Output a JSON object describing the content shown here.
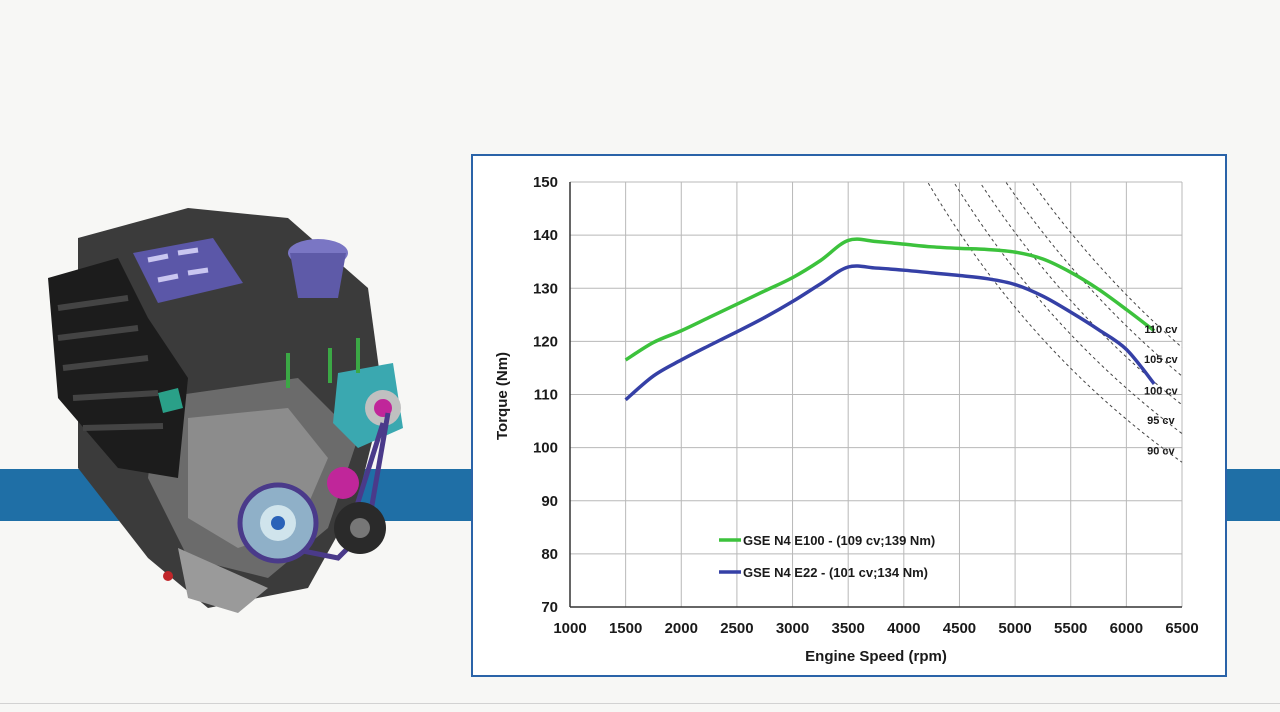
{
  "colors": {
    "band": "#1f6fa6",
    "frame": "#2a63a8",
    "series_green": "#3cc23c",
    "series_blue": "#3540a6",
    "grid": "#b8b8b8"
  },
  "image": {
    "subject": "engine-illustration"
  },
  "chart_data": {
    "type": "line",
    "title": "",
    "xlabel": "Engine Speed (rpm)",
    "ylabel": "Torque (Nm)",
    "xlim": [
      1000,
      6500
    ],
    "ylim": [
      70,
      150
    ],
    "xticks": [
      1000,
      1500,
      2000,
      2500,
      3000,
      3500,
      4000,
      4500,
      5000,
      5500,
      6000,
      6500
    ],
    "yticks": [
      70,
      80,
      90,
      100,
      110,
      120,
      130,
      140,
      150
    ],
    "grid": true,
    "legend_position": "bottom-left",
    "series": [
      {
        "name": "GSE N4 E100  - (109 cv;139 Nm)",
        "color": "#3cc23c",
        "x": [
          1500,
          1750,
          2000,
          2250,
          2500,
          2750,
          3000,
          3250,
          3500,
          3750,
          4000,
          4250,
          4500,
          4750,
          5000,
          5250,
          5500,
          5750,
          6000,
          6250
        ],
        "y": [
          116.5,
          119.8,
          122,
          124.5,
          127,
          129.5,
          132,
          135.2,
          139,
          138.8,
          138.3,
          137.8,
          137.5,
          137.3,
          136.8,
          135.5,
          133,
          129.8,
          126,
          122
        ]
      },
      {
        "name": "GSE N4  E22 - (101 cv;134 Nm)",
        "color": "#3540a6",
        "x": [
          1500,
          1750,
          2000,
          2250,
          2500,
          2750,
          3000,
          3250,
          3500,
          3750,
          4000,
          4250,
          4500,
          4750,
          5000,
          5250,
          5500,
          5750,
          6000,
          6250
        ],
        "y": [
          109,
          113.5,
          116.5,
          119.2,
          121.8,
          124.5,
          127.5,
          130.8,
          134,
          133.8,
          133.4,
          132.9,
          132.4,
          131.8,
          130.7,
          128.5,
          125.5,
          122.2,
          118.5,
          112
        ]
      }
    ],
    "power_lines": [
      {
        "label": "110 cv",
        "hp": 110,
        "label_x": 6400,
        "label_y": 122.3
      },
      {
        "label": "105 cv",
        "hp": 105,
        "label_x": 6400,
        "label_y": 116.7
      },
      {
        "label": "100 cv",
        "hp": 100,
        "label_x": 6400,
        "label_y": 110.8
      },
      {
        "label": "95 cv",
        "hp": 95,
        "label_x": 6400,
        "label_y": 105.2
      },
      {
        "label": "90 cv",
        "hp": 90,
        "label_x": 6400,
        "label_y": 99.5
      }
    ]
  }
}
